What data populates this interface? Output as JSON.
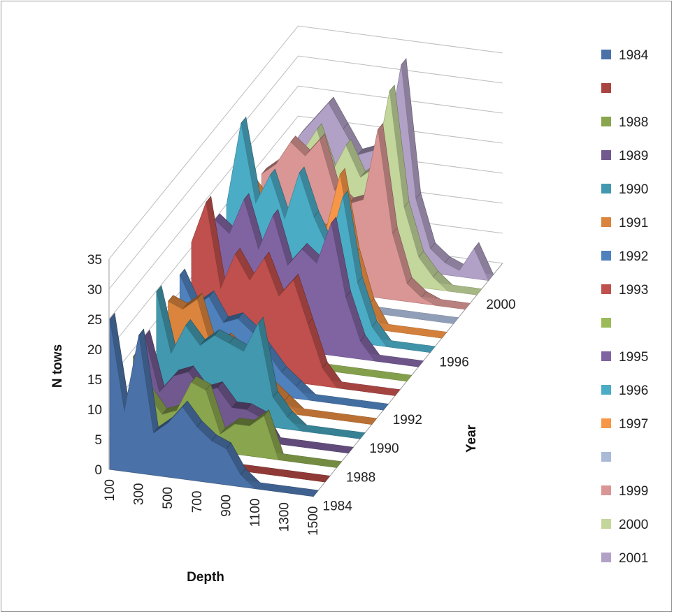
{
  "chart_data": {
    "type": "area",
    "chart_style": "3d-area",
    "xlabel": "Depth",
    "ylabel": "N tows",
    "zlabel": "Year",
    "ylim": [
      0,
      35
    ],
    "yticks": [
      0,
      5,
      10,
      15,
      20,
      25,
      30,
      35
    ],
    "x": [
      100,
      200,
      300,
      400,
      500,
      600,
      700,
      800,
      900,
      1000,
      1100,
      1200,
      1300,
      1400,
      1500
    ],
    "x_tick_labels": [
      "100",
      "300",
      "500",
      "700",
      "900",
      "1100",
      "1300",
      "1500"
    ],
    "year_tick_labels": [
      "1984",
      "1988",
      "1990",
      "1992",
      "1996",
      "2000"
    ],
    "grid": true,
    "legend_position": "right",
    "series": [
      {
        "name": "1984",
        "color": "#4a72a8",
        "values": [
          25,
          10,
          23,
          7,
          9,
          12,
          9,
          7,
          6,
          2,
          0,
          0,
          0,
          0,
          0
        ]
      },
      {
        "name": "",
        "color": "#a94441",
        "values": [
          0,
          0,
          0,
          0,
          0,
          0,
          0,
          0,
          0,
          0,
          0,
          0,
          0,
          0,
          0
        ]
      },
      {
        "name": "1988",
        "color": "#89a54e",
        "values": [
          14,
          8,
          5,
          6,
          11,
          10,
          3,
          5,
          5,
          7,
          0,
          0,
          0,
          0,
          0
        ]
      },
      {
        "name": "1989",
        "color": "#71588f",
        "values": [
          15,
          6,
          9,
          10,
          7,
          8,
          5,
          5,
          4,
          0,
          0,
          0,
          0,
          0,
          0
        ]
      },
      {
        "name": "1990",
        "color": "#4198af",
        "values": [
          20,
          10,
          15,
          12,
          14,
          13,
          12,
          17,
          5,
          2,
          0,
          0,
          0,
          0,
          0
        ]
      },
      {
        "name": "1991",
        "color": "#db843d",
        "values": [
          16,
          15,
          17,
          9,
          11,
          9,
          8,
          4,
          2,
          0,
          0,
          0,
          0,
          0,
          0
        ]
      },
      {
        "name": "1992",
        "color": "#4f81bd",
        "values": [
          18,
          13,
          15,
          11,
          12,
          10,
          7,
          4,
          2,
          0,
          0,
          0,
          0,
          0,
          0
        ]
      },
      {
        "name": "1993",
        "color": "#c0504d",
        "values": [
          21,
          28,
          14,
          20,
          16,
          20,
          14,
          17,
          10,
          3,
          0,
          0,
          0,
          0,
          0
        ]
      },
      {
        "name": "",
        "color": "#9bbb59",
        "values": [
          0,
          0,
          0,
          0,
          0,
          0,
          0,
          0,
          0,
          0,
          0,
          0,
          0,
          0,
          0
        ]
      },
      {
        "name": "1995",
        "color": "#8064a2",
        "values": [
          20,
          18,
          24,
          16,
          22,
          14,
          17,
          15,
          22,
          10,
          3,
          0,
          0,
          0,
          0
        ]
      },
      {
        "name": "1996",
        "color": "#4bacc6",
        "values": [
          20,
          34,
          21,
          26,
          19,
          27,
          20,
          15,
          24,
          10,
          3,
          0,
          0,
          0,
          0
        ]
      },
      {
        "name": "1997",
        "color": "#f79646",
        "values": [
          16,
          21,
          18,
          17,
          19,
          16,
          15,
          25,
          12,
          4,
          0,
          0,
          0,
          0,
          0
        ]
      },
      {
        "name": "",
        "color": "#aabad7",
        "values": [
          0,
          0,
          0,
          0,
          0,
          0,
          0,
          0,
          0,
          0,
          0,
          0,
          0,
          0,
          0
        ]
      },
      {
        "name": "1999",
        "color": "#d99694",
        "values": [
          18,
          20,
          24,
          22,
          25,
          17,
          15,
          16,
          28,
          11,
          3,
          1,
          0,
          0,
          0
        ]
      },
      {
        "name": "2000",
        "color": "#c3d69b",
        "values": [
          15,
          18,
          20,
          24,
          17,
          22,
          17,
          19,
          32,
          13,
          5,
          2,
          0,
          0,
          0
        ]
      },
      {
        "name": "2001",
        "color": "#b2a1c7",
        "values": [
          16,
          20,
          23,
          26,
          22,
          18,
          19,
          20,
          34,
          12,
          4,
          2,
          1,
          5,
          0
        ]
      }
    ]
  }
}
